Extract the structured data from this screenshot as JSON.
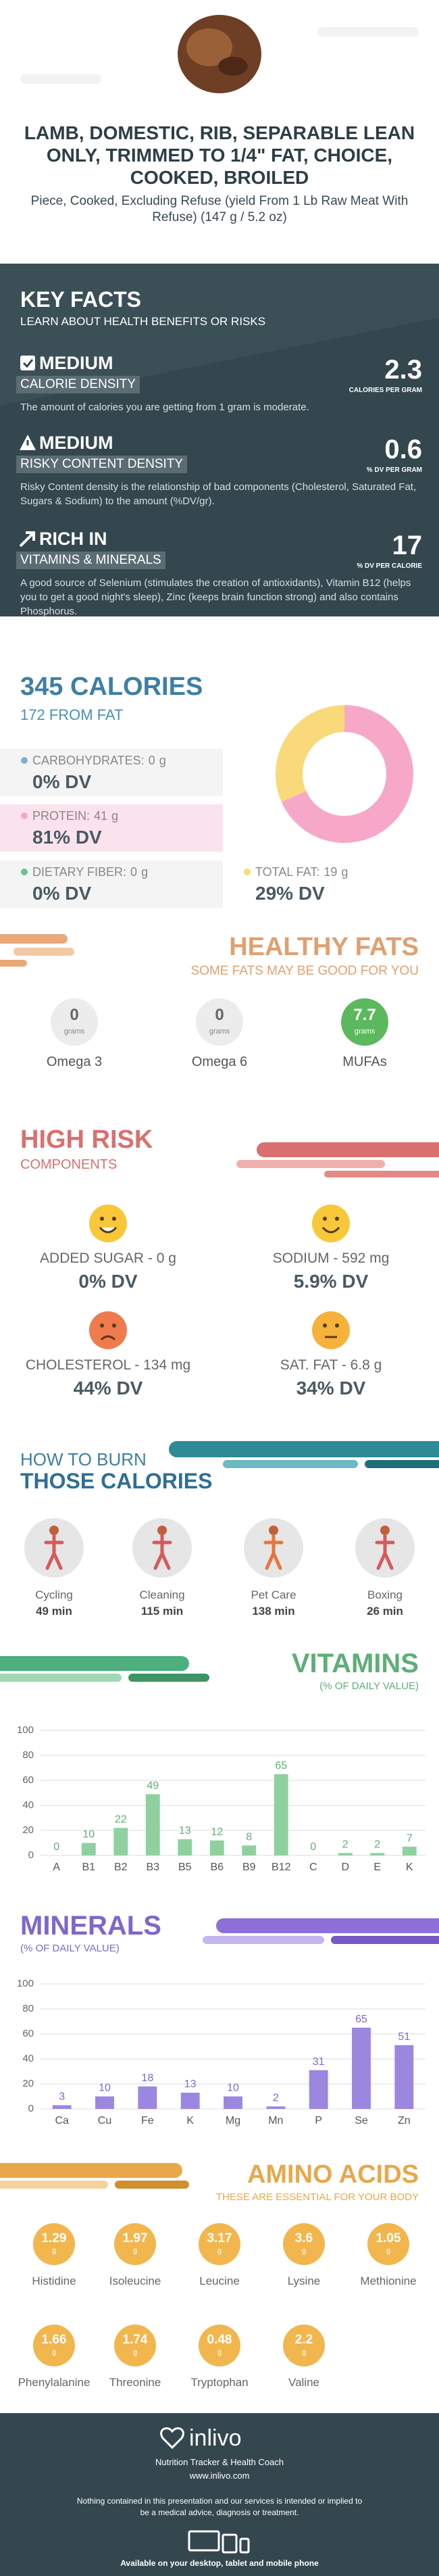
{
  "header": {
    "title": "LAMB, DOMESTIC, RIB, SEPARABLE LEAN ONLY, TRIMMED TO 1/4\" FAT, CHOICE, COOKED, BROILED",
    "subtitle": "Piece, Cooked, Excluding Refuse (yield From 1 Lb Raw Meat With Refuse) (147 g / 5.2 oz)"
  },
  "key_facts": {
    "title": "KEY FACTS",
    "subtitle": "LEARN ABOUT HEALTH BENEFITS OR RISKS",
    "items": [
      {
        "level": "MEDIUM",
        "title": "CALORIE DENSITY",
        "value": "2.3",
        "unit": "CALORIES PER GRAM",
        "description": "The amount of calories you are getting from 1 gram is moderate."
      },
      {
        "level": "MEDIUM",
        "title": "RISKY CONTENT DENSITY",
        "value": "0.6",
        "unit": "% DV PER GRAM",
        "description": "Risky Content density is the relationship of bad components (Cholesterol, Saturated Fat, Sugars & Sodium) to the amount (%DV/gr)."
      },
      {
        "level": "RICH IN",
        "title": "VITAMINS & MINERALS",
        "value": "17",
        "unit": "% DV PER CALORIE",
        "description": "A good source of Selenium (stimulates the creation of antioxidants), Vitamin B12 (helps you to get a good night's sleep), Zinc (keeps brain function strong) and also contains Phosphorus."
      }
    ]
  },
  "calories": {
    "title": "345 CALORIES",
    "subtitle": "172 FROM FAT",
    "macros": [
      {
        "label": "CARBOHYDRATES:",
        "amount": 0,
        "unit": "g",
        "dv": "0% DV",
        "color": "#7fb0d0"
      },
      {
        "label": "PROTEIN:",
        "amount": 41,
        "unit": "g",
        "dv": "81% DV",
        "color": "#f7a8c8"
      },
      {
        "label": "DIETARY FIBER:",
        "amount": 0,
        "unit": "g",
        "dv": "0% DV",
        "color": "#6cc28f"
      },
      {
        "label": "TOTAL FAT:",
        "amount": 19,
        "unit": "g",
        "dv": "29% DV",
        "color": "#f9d97a"
      }
    ]
  },
  "healthy_fats": {
    "title": "HEALTHY FATS",
    "subtitle": "SOME FATS MAY BE GOOD FOR YOU",
    "items": [
      {
        "name": "Omega 3",
        "value": "0",
        "unit": "grams"
      },
      {
        "name": "Omega 6",
        "value": "0",
        "unit": "grams"
      },
      {
        "name": "MUFAs",
        "value": "7.7",
        "unit": "grams"
      }
    ]
  },
  "high_risk": {
    "title": "HIGH RISK",
    "subtitle": "COMPONENTS",
    "items": [
      {
        "label": "ADDED SUGAR - 0 g",
        "dv": "0% DV"
      },
      {
        "label": "SODIUM - 592 mg",
        "dv": "5.9% DV"
      },
      {
        "label": "CHOLESTEROL - 134 mg",
        "dv": "44% DV"
      },
      {
        "label": "SAT. FAT - 6.8 g",
        "dv": "34% DV"
      }
    ]
  },
  "burn": {
    "title": "HOW TO BURN",
    "subtitle": "THOSE CALORIES",
    "activities": [
      {
        "name": "Cycling",
        "time": "49 min"
      },
      {
        "name": "Cleaning",
        "time": "115 min"
      },
      {
        "name": "Pet Care",
        "time": "138 min"
      },
      {
        "name": "Boxing",
        "time": "26 min"
      }
    ]
  },
  "chart_data": [
    {
      "type": "bar",
      "title": "VITAMINS",
      "subtitle": "(% OF DAILY VALUE)",
      "categories": [
        "A",
        "B1",
        "B2",
        "B3",
        "B5",
        "B6",
        "B9",
        "B12",
        "C",
        "D",
        "E",
        "K"
      ],
      "values": [
        0,
        10,
        22,
        49,
        13,
        12,
        8,
        65,
        0,
        2,
        2,
        7
      ],
      "color": "#8fd19e",
      "label_color": "#5fae77",
      "ylim": [
        0,
        100
      ],
      "yticks": [
        0,
        20,
        40,
        60,
        80,
        100
      ],
      "grid": true
    },
    {
      "type": "bar",
      "title": "MINERALS",
      "subtitle": "(% OF DAILY VALUE)",
      "categories": [
        "Ca",
        "Cu",
        "Fe",
        "K",
        "Mg",
        "Mn",
        "P",
        "Se",
        "Zn"
      ],
      "values": [
        3,
        10,
        18,
        13,
        10,
        2,
        31,
        65,
        51
      ],
      "color": "#9b86e0",
      "label_color": "#7d68cc",
      "ylim": [
        0,
        100
      ],
      "yticks": [
        0,
        20,
        40,
        60,
        80,
        100
      ],
      "grid": true
    }
  ],
  "amino_acids": {
    "title": "AMINO ACIDS",
    "subtitle": "THESE ARE ESSENTIAL FOR YOUR BODY",
    "items": [
      {
        "name": "Histidine",
        "value": "1.29",
        "unit": "g"
      },
      {
        "name": "Isoleucine",
        "value": "1.97",
        "unit": "g"
      },
      {
        "name": "Leucine",
        "value": "3.17",
        "unit": "g"
      },
      {
        "name": "Lysine",
        "value": "3.6",
        "unit": "g"
      },
      {
        "name": "Methionine",
        "value": "1.05",
        "unit": "g"
      },
      {
        "name": "Phenylalanine",
        "value": "1.66",
        "unit": "g"
      },
      {
        "name": "Threonine",
        "value": "1.74",
        "unit": "g"
      },
      {
        "name": "Tryptophan",
        "value": "0.48",
        "unit": "g"
      },
      {
        "name": "Valine",
        "value": "2.2",
        "unit": "g"
      }
    ]
  },
  "footer": {
    "brand": "inlivo",
    "tagline": "Nutrition Tracker & Health Coach",
    "website": "www.inlivo.com",
    "disclaimer": "Nothing contained in this presentation and our services is intended or implied to be a medical advice, diagnosis or treatment.",
    "availability": "Available on your desktop, tablet and mobile phone"
  }
}
